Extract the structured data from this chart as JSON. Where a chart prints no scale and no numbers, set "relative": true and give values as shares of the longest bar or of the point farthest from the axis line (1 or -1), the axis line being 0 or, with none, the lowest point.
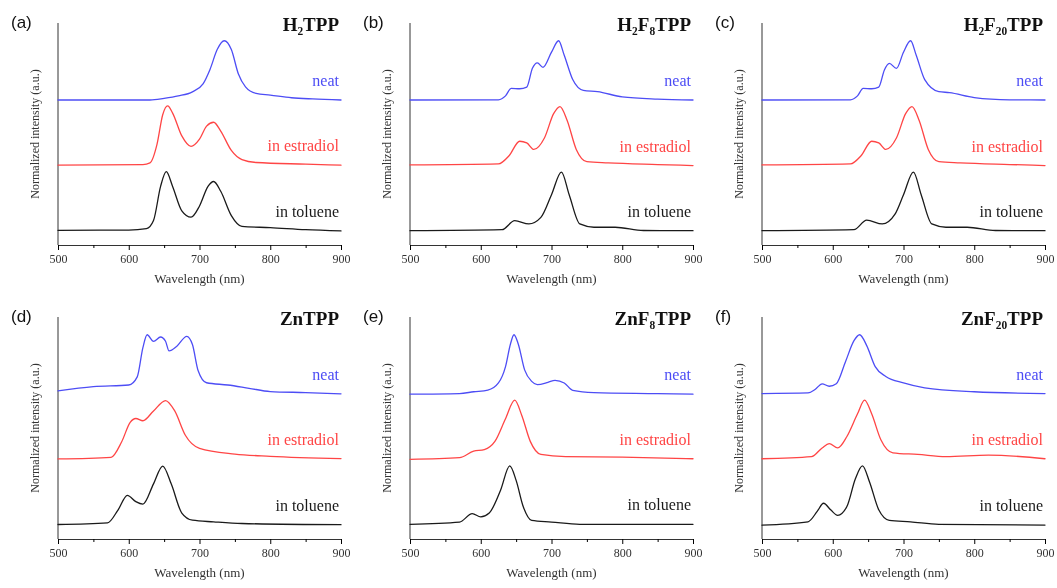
{
  "chart_data": [
    {
      "type": "line",
      "title": "H₂TPP",
      "annotations": [
        "(a)"
      ],
      "xlabel": "Wavelength (nm)",
      "ylabel": "Normalized intensity (a.u.)",
      "relative": true,
      "xlim": [
        500,
        900
      ],
      "xticks": [
        500,
        {
          "value": 550,
          "label": null
        },
        600,
        {
          "value": 650,
          "label": null
        },
        700,
        {
          "value": 750,
          "label": null
        },
        800,
        {
          "value": 850,
          "label": null
        },
        900
      ],
      "grid": false,
      "series": [
        {
          "name": "neat",
          "color": "#4d4df5",
          "x": [
            500,
            630,
            650,
            670,
            690,
            705,
            715,
            725,
            735,
            745,
            755,
            765,
            780,
            800,
            830,
            860,
            900
          ],
          "values": [
            0.71,
            0.71,
            0.718,
            0.73,
            0.75,
            0.789,
            0.861,
            0.957,
            1.0,
            0.957,
            0.837,
            0.774,
            0.742,
            0.734,
            0.721,
            0.715,
            0.71
          ]
        },
        {
          "name": "in estradiol",
          "color": "#ff4545",
          "x": [
            500,
            620,
            630,
            640,
            648,
            655,
            662,
            675,
            688,
            700,
            710,
            720,
            730,
            745,
            760,
            780,
            850,
            900
          ],
          "values": [
            0.391,
            0.394,
            0.402,
            0.494,
            0.638,
            0.681,
            0.646,
            0.534,
            0.483,
            0.518,
            0.582,
            0.601,
            0.558,
            0.463,
            0.418,
            0.404,
            0.396,
            0.391
          ]
        },
        {
          "name": "in toluene",
          "color": "#1a1a1a",
          "x": [
            500,
            600,
            625,
            635,
            645,
            653,
            662,
            675,
            688,
            700,
            712,
            720,
            730,
            745,
            760,
            800,
            850,
            900
          ],
          "values": [
            0.072,
            0.073,
            0.08,
            0.12,
            0.287,
            0.359,
            0.287,
            0.167,
            0.136,
            0.191,
            0.287,
            0.311,
            0.263,
            0.144,
            0.091,
            0.085,
            0.075,
            0.069
          ]
        }
      ]
    },
    {
      "type": "line",
      "title": "H₂F₈TPP",
      "annotations": [
        "(b)"
      ],
      "xlabel": "Wavelength (nm)",
      "ylabel": "Normalized intensity (a.u.)",
      "relative": true,
      "xlim": [
        500,
        900
      ],
      "xticks": [
        500,
        {
          "value": 550,
          "label": null
        },
        600,
        {
          "value": 650,
          "label": null
        },
        700,
        {
          "value": 750,
          "label": null
        },
        800,
        {
          "value": 850,
          "label": null
        },
        900
      ],
      "grid": false,
      "series": [
        {
          "name": "neat",
          "color": "#4d4df5",
          "x": [
            500,
            625,
            635,
            643,
            655,
            665,
            673,
            680,
            688,
            700,
            710,
            718,
            730,
            745,
            765,
            800,
            850,
            900
          ],
          "values": [
            0.71,
            0.711,
            0.73,
            0.767,
            0.765,
            0.773,
            0.865,
            0.892,
            0.87,
            0.944,
            1.0,
            0.929,
            0.81,
            0.757,
            0.751,
            0.725,
            0.714,
            0.71
          ]
        },
        {
          "name": "in estradiol",
          "color": "#ff4545",
          "x": [
            500,
            625,
            640,
            655,
            665,
            675,
            690,
            703,
            712,
            722,
            735,
            750,
            780,
            850,
            900
          ],
          "values": [
            0.392,
            0.397,
            0.437,
            0.508,
            0.5,
            0.468,
            0.524,
            0.643,
            0.678,
            0.611,
            0.468,
            0.408,
            0.402,
            0.394,
            0.389
          ]
        },
        {
          "name": "in toluene",
          "color": "#1a1a1a",
          "x": [
            500,
            630,
            648,
            668,
            685,
            700,
            714,
            725,
            740,
            760,
            790,
            830,
            900
          ],
          "values": [
            0.07,
            0.075,
            0.119,
            0.103,
            0.135,
            0.246,
            0.357,
            0.246,
            0.103,
            0.087,
            0.087,
            0.071,
            0.07
          ]
        }
      ]
    },
    {
      "type": "line",
      "title": "H₂F₂₀TPP",
      "annotations": [
        "(c)"
      ],
      "xlabel": "Wavelength (nm)",
      "ylabel": "Normalized intensity (a.u.)",
      "relative": true,
      "xlim": [
        500,
        900
      ],
      "xticks": [
        500,
        {
          "value": 550,
          "label": null
        },
        600,
        {
          "value": 650,
          "label": null
        },
        700,
        {
          "value": 750,
          "label": null
        },
        800,
        {
          "value": 850,
          "label": null
        },
        900
      ],
      "grid": false,
      "series": [
        {
          "name": "neat",
          "color": "#4d4df5",
          "x": [
            500,
            625,
            635,
            643,
            655,
            665,
            673,
            680,
            690,
            700,
            710,
            718,
            730,
            750,
            765,
            800,
            850,
            900
          ],
          "values": [
            0.71,
            0.711,
            0.73,
            0.767,
            0.765,
            0.773,
            0.857,
            0.889,
            0.865,
            0.944,
            1.0,
            0.929,
            0.81,
            0.751,
            0.746,
            0.722,
            0.711,
            0.71
          ]
        },
        {
          "name": "in estradiol",
          "color": "#ff4545",
          "x": [
            500,
            625,
            640,
            655,
            665,
            675,
            690,
            703,
            712,
            722,
            735,
            750,
            780,
            850,
            900
          ],
          "values": [
            0.392,
            0.397,
            0.437,
            0.508,
            0.5,
            0.468,
            0.524,
            0.643,
            0.678,
            0.611,
            0.468,
            0.408,
            0.402,
            0.394,
            0.389
          ]
        },
        {
          "name": "in toluene",
          "color": "#1a1a1a",
          "x": [
            500,
            630,
            648,
            670,
            688,
            700,
            714,
            725,
            740,
            760,
            790,
            830,
            900
          ],
          "values": [
            0.07,
            0.075,
            0.122,
            0.103,
            0.151,
            0.246,
            0.357,
            0.246,
            0.103,
            0.087,
            0.087,
            0.071,
            0.07
          ]
        }
      ]
    },
    {
      "type": "line",
      "title": "ZnTPP",
      "annotations": [
        "(d)"
      ],
      "xlabel": "Wavelength (nm)",
      "ylabel": "Normalized intensity (a.u.)",
      "relative": true,
      "xlim": [
        500,
        900
      ],
      "xticks": [
        500,
        {
          "value": 550,
          "label": null
        },
        600,
        {
          "value": 650,
          "label": null
        },
        700,
        {
          "value": 750,
          "label": null
        },
        800,
        {
          "value": 850,
          "label": null
        },
        900
      ],
      "grid": false,
      "series": [
        {
          "name": "neat",
          "color": "#4d4df5",
          "x": [
            500,
            550,
            600,
            612,
            620,
            626,
            635,
            645,
            652,
            657,
            668,
            682,
            690,
            698,
            710,
            740,
            770,
            800,
            850,
            900
          ],
          "values": [
            0.725,
            0.746,
            0.754,
            0.794,
            0.937,
            1.0,
            0.968,
            0.989,
            0.968,
            0.921,
            0.944,
            0.992,
            0.952,
            0.825,
            0.765,
            0.754,
            0.738,
            0.722,
            0.717,
            0.711
          ]
        },
        {
          "name": "in estradiol",
          "color": "#ff4545",
          "x": [
            500,
            575,
            590,
            602,
            610,
            620,
            635,
            652,
            665,
            680,
            700,
            750,
            800,
            900
          ],
          "values": [
            0.392,
            0.4,
            0.476,
            0.571,
            0.59,
            0.579,
            0.627,
            0.678,
            0.627,
            0.508,
            0.444,
            0.416,
            0.405,
            0.394
          ]
        },
        {
          "name": "in toluene",
          "color": "#1a1a1a",
          "x": [
            500,
            570,
            585,
            598,
            610,
            620,
            635,
            648,
            660,
            675,
            690,
            720,
            760,
            900
          ],
          "values": [
            0.071,
            0.079,
            0.143,
            0.214,
            0.183,
            0.171,
            0.27,
            0.357,
            0.27,
            0.127,
            0.092,
            0.084,
            0.076,
            0.07
          ]
        }
      ]
    },
    {
      "type": "line",
      "title": "ZnF₈TPP",
      "annotations": [
        "(e)"
      ],
      "xlabel": "Wavelength (nm)",
      "ylabel": "Normalized intensity (a.u.)",
      "relative": true,
      "xlim": [
        500,
        900
      ],
      "xticks": [
        500,
        {
          "value": 550,
          "label": null
        },
        600,
        {
          "value": 650,
          "label": null
        },
        700,
        {
          "value": 750,
          "label": null
        },
        800,
        {
          "value": 850,
          "label": null
        },
        900
      ],
      "grid": false,
      "series": [
        {
          "name": "neat",
          "color": "#4d4df5",
          "x": [
            500,
            570,
            590,
            610,
            625,
            635,
            642,
            647,
            653,
            662,
            672,
            680,
            695,
            705,
            718,
            730,
            760,
            850,
            900
          ],
          "values": [
            0.709,
            0.712,
            0.721,
            0.729,
            0.764,
            0.844,
            0.955,
            1.0,
            0.955,
            0.828,
            0.772,
            0.756,
            0.767,
            0.777,
            0.764,
            0.728,
            0.717,
            0.712,
            0.709
          ]
        },
        {
          "name": "in estradiol",
          "color": "#ff4545",
          "x": [
            500,
            570,
            590,
            605,
            620,
            635,
            648,
            658,
            670,
            685,
            720,
            800,
            900
          ],
          "values": [
            0.39,
            0.398,
            0.43,
            0.438,
            0.478,
            0.589,
            0.68,
            0.605,
            0.478,
            0.414,
            0.403,
            0.401,
            0.393
          ]
        },
        {
          "name": "in toluene",
          "color": "#1a1a1a",
          "x": [
            500,
            570,
            588,
            600,
            612,
            628,
            641,
            650,
            660,
            672,
            700,
            740,
            900
          ],
          "values": [
            0.072,
            0.083,
            0.124,
            0.108,
            0.127,
            0.239,
            0.358,
            0.287,
            0.159,
            0.091,
            0.083,
            0.072,
            0.072
          ]
        }
      ]
    },
    {
      "type": "line",
      "title": "ZnF₂₀TPP",
      "annotations": [
        "(f)"
      ],
      "xlabel": "Wavelength (nm)",
      "ylabel": "Normalized intensity (a.u.)",
      "relative": true,
      "xlim": [
        500,
        900
      ],
      "xticks": [
        500,
        {
          "value": 550,
          "label": null
        },
        600,
        {
          "value": 650,
          "label": null
        },
        700,
        {
          "value": 750,
          "label": null
        },
        800,
        {
          "value": 850,
          "label": null
        },
        900
      ],
      "grid": false,
      "series": [
        {
          "name": "neat",
          "color": "#4d4df5",
          "x": [
            500,
            565,
            575,
            585,
            595,
            605,
            618,
            630,
            638,
            648,
            660,
            675,
            700,
            730,
            800,
            900
          ],
          "values": [
            0.712,
            0.715,
            0.732,
            0.76,
            0.748,
            0.76,
            0.868,
            0.971,
            1.0,
            0.947,
            0.844,
            0.796,
            0.764,
            0.74,
            0.721,
            0.712
          ]
        },
        {
          "name": "in estradiol",
          "color": "#ff4545",
          "x": [
            500,
            570,
            585,
            595,
            607,
            620,
            635,
            645,
            655,
            668,
            685,
            720,
            760,
            820,
            900
          ],
          "values": [
            0.393,
            0.403,
            0.446,
            0.467,
            0.446,
            0.502,
            0.613,
            0.68,
            0.613,
            0.486,
            0.422,
            0.414,
            0.403,
            0.411,
            0.393
          ]
        },
        {
          "name": "in toluene",
          "color": "#1a1a1a",
          "x": [
            500,
            565,
            578,
            587,
            597,
            607,
            620,
            632,
            642,
            652,
            665,
            680,
            710,
            750,
            900
          ],
          "values": [
            0.068,
            0.084,
            0.135,
            0.175,
            0.143,
            0.116,
            0.159,
            0.295,
            0.358,
            0.279,
            0.143,
            0.091,
            0.084,
            0.072,
            0.068
          ]
        }
      ]
    }
  ]
}
